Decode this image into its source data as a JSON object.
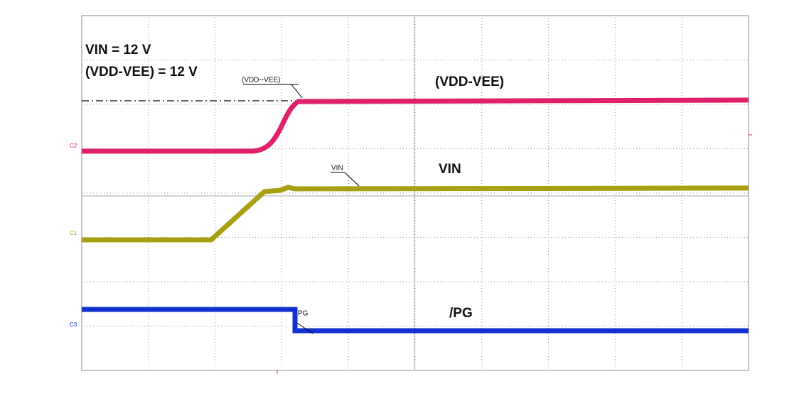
{
  "annotations": {
    "vin": "VIN = 12 V",
    "vdd_vee": "(VDD-VEE) = 12 V"
  },
  "traces": [
    {
      "channel": "C2",
      "cursor_label": "(VDD--VEE)",
      "label": "(VDD-VEE)"
    },
    {
      "channel": "C1",
      "cursor_label": "VIN",
      "label": "VIN"
    },
    {
      "channel": "C3",
      "cursor_label": "PG",
      "label": "/PG"
    }
  ]
}
